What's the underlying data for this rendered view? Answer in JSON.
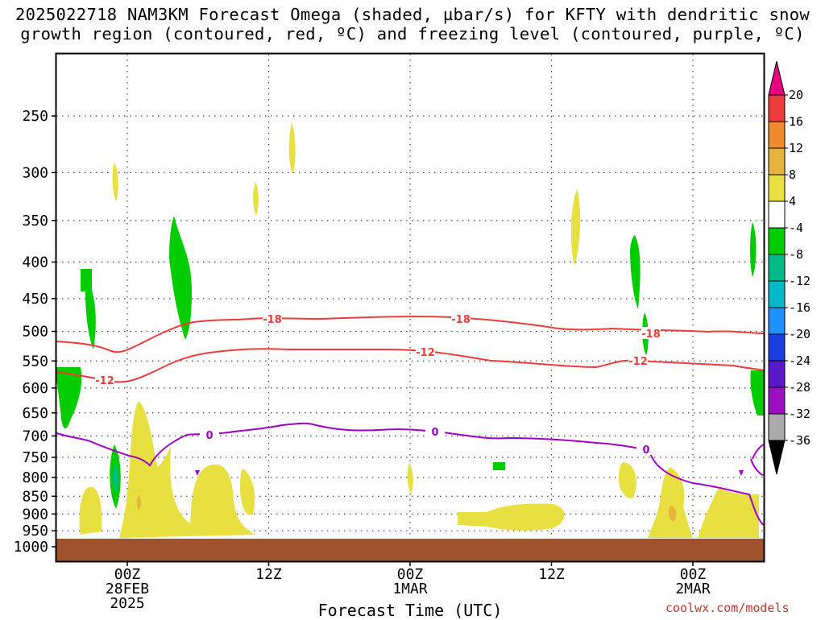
{
  "title_lines": [
    "2025022718 NAM3KM Forecast Omega (shaded, µbar/s) for KFTY with dendritic snow",
    "growth region (contoured, red, ºC) and freezing level (contoured, purple, ºC)"
  ],
  "credit": "coolwx.com/models",
  "chart_data": {
    "type": "heatmap",
    "xlabel": "Forecast Time (UTC)",
    "x_ticks": [
      {
        "hour": 6,
        "lines": [
          "00Z",
          "28FEB",
          "2025"
        ]
      },
      {
        "hour": 18,
        "lines": [
          "12Z"
        ]
      },
      {
        "hour": 30,
        "lines": [
          "00Z",
          "1MAR"
        ]
      },
      {
        "hour": 42,
        "lines": [
          "12Z"
        ]
      },
      {
        "hour": 54,
        "lines": [
          "00Z",
          "2MAR"
        ]
      }
    ],
    "x_range_hours": [
      0,
      60
    ],
    "y_ticks_hpa": [
      250,
      300,
      350,
      400,
      450,
      500,
      550,
      600,
      650,
      700,
      750,
      800,
      850,
      900,
      950,
      1000
    ],
    "y_scale": "log-pressure",
    "grid": "dotted",
    "colorbar": {
      "labels": [
        20,
        16,
        12,
        8,
        4,
        -4,
        -8,
        -12,
        -16,
        -20,
        -24,
        -28,
        -32,
        -36
      ],
      "colors": [
        "#e8007f",
        "#ee3b3b",
        "#f08a30",
        "#e6b43c",
        "#e8e040",
        "#ffffff",
        "#00cc00",
        "#00bb88",
        "#00b8c8",
        "#1e90ff",
        "#1a3ee0",
        "#5a18c8",
        "#9a10c0",
        "#aaaaaa",
        "#000000"
      ]
    },
    "contour_labels": [
      {
        "text": "-18",
        "color": "#ee3b3b"
      },
      {
        "text": "-12",
        "color": "#ee3b3b"
      },
      {
        "text": "0",
        "color": "#a000c8"
      }
    ],
    "surface_color": "#a0522d"
  }
}
